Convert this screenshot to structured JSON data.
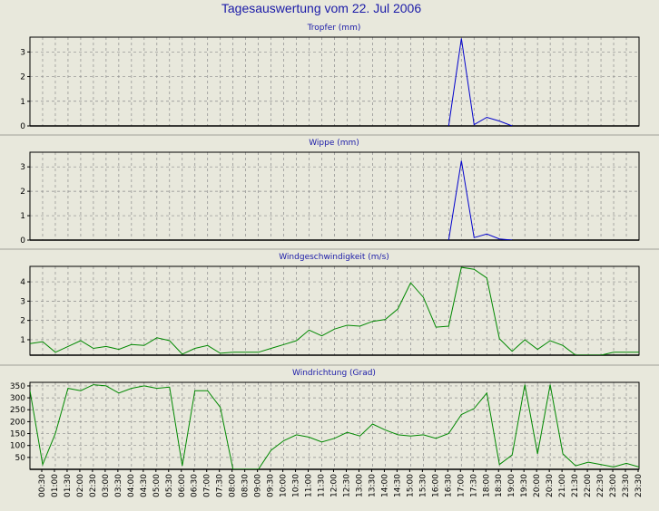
{
  "title": "Tagesauswertung vom 22. Jul 2006",
  "colors": {
    "background": "#e8e8dc",
    "title": "#1a1aa8",
    "rain": "#0000cc",
    "wind": "#008800",
    "grid": "#8c8c8c"
  },
  "chart_data": [
    {
      "type": "line",
      "title": "Tropfer (mm)",
      "color": "#0000cc",
      "ylim": [
        0,
        3.6
      ],
      "yticks": [
        0,
        1,
        2,
        3
      ],
      "x_count": 48,
      "points": [
        [
          33,
          0
        ],
        [
          34,
          3.55
        ],
        [
          35,
          0.05
        ],
        [
          36,
          0.35
        ],
        [
          37,
          0.2
        ],
        [
          38,
          0
        ]
      ],
      "grid": true
    },
    {
      "type": "line",
      "title": "Wippe (mm)",
      "color": "#0000cc",
      "ylim": [
        0,
        3.6
      ],
      "yticks": [
        0,
        1,
        2,
        3
      ],
      "x_count": 48,
      "points": [
        [
          33,
          0
        ],
        [
          34,
          3.25
        ],
        [
          35,
          0.1
        ],
        [
          36,
          0.25
        ],
        [
          37,
          0.05
        ],
        [
          38,
          0
        ]
      ],
      "grid": true
    },
    {
      "type": "line",
      "title": "Windgeschwindigkeit (m/s)",
      "color": "#008800",
      "ylim": [
        0.2,
        4.8
      ],
      "yticks": [
        1,
        2,
        3,
        4
      ],
      "x_count": 48,
      "points": [
        [
          0,
          0.8
        ],
        [
          1,
          0.9
        ],
        [
          2,
          0.35
        ],
        [
          3,
          0.65
        ],
        [
          4,
          0.95
        ],
        [
          5,
          0.55
        ],
        [
          6,
          0.65
        ],
        [
          7,
          0.5
        ],
        [
          8,
          0.75
        ],
        [
          9,
          0.7
        ],
        [
          10,
          1.1
        ],
        [
          11,
          0.95
        ],
        [
          12,
          0.25
        ],
        [
          13,
          0.55
        ],
        [
          14,
          0.7
        ],
        [
          15,
          0.3
        ],
        [
          16,
          0.35
        ],
        [
          17,
          0.35
        ],
        [
          18,
          0.35
        ],
        [
          19,
          0.55
        ],
        [
          20,
          0.75
        ],
        [
          21,
          0.95
        ],
        [
          22,
          1.5
        ],
        [
          23,
          1.2
        ],
        [
          24,
          1.55
        ],
        [
          25,
          1.75
        ],
        [
          26,
          1.7
        ],
        [
          27,
          1.95
        ],
        [
          28,
          2.05
        ],
        [
          29,
          2.6
        ],
        [
          30,
          3.95
        ],
        [
          31,
          3.2
        ],
        [
          32,
          1.65
        ],
        [
          33,
          1.7
        ],
        [
          34,
          4.75
        ],
        [
          35,
          4.65
        ],
        [
          36,
          4.2
        ],
        [
          37,
          1.05
        ],
        [
          38,
          0.4
        ],
        [
          39,
          1.0
        ],
        [
          40,
          0.5
        ],
        [
          41,
          0.95
        ],
        [
          42,
          0.7
        ],
        [
          43,
          0.2
        ],
        [
          44,
          0.2
        ],
        [
          45,
          0.2
        ],
        [
          46,
          0.35
        ],
        [
          47,
          0.35
        ],
        [
          48,
          0.35
        ]
      ],
      "grid": true
    },
    {
      "type": "line",
      "title": "Windrichtung (Grad)",
      "color": "#008800",
      "ylim": [
        0,
        365
      ],
      "yticks": [
        50,
        100,
        150,
        200,
        250,
        300,
        350
      ],
      "x_count": 48,
      "points": [
        [
          0,
          330
        ],
        [
          1,
          20
        ],
        [
          2,
          150
        ],
        [
          3,
          340
        ],
        [
          4,
          330
        ],
        [
          5,
          355
        ],
        [
          6,
          350
        ],
        [
          7,
          320
        ],
        [
          8,
          340
        ],
        [
          9,
          350
        ],
        [
          10,
          340
        ],
        [
          11,
          345
        ],
        [
          12,
          15
        ],
        [
          13,
          330
        ],
        [
          14,
          330
        ],
        [
          15,
          260
        ],
        [
          16,
          0
        ],
        [
          17,
          0
        ],
        [
          18,
          0
        ],
        [
          19,
          80
        ],
        [
          20,
          120
        ],
        [
          21,
          145
        ],
        [
          22,
          135
        ],
        [
          23,
          115
        ],
        [
          24,
          130
        ],
        [
          25,
          155
        ],
        [
          26,
          140
        ],
        [
          27,
          190
        ],
        [
          28,
          165
        ],
        [
          29,
          145
        ],
        [
          30,
          140
        ],
        [
          31,
          145
        ],
        [
          32,
          130
        ],
        [
          33,
          150
        ],
        [
          34,
          230
        ],
        [
          35,
          255
        ],
        [
          36,
          320
        ],
        [
          37,
          20
        ],
        [
          38,
          60
        ],
        [
          39,
          355
        ],
        [
          40,
          65
        ],
        [
          41,
          355
        ],
        [
          42,
          65
        ],
        [
          43,
          15
        ],
        [
          44,
          30
        ],
        [
          45,
          20
        ],
        [
          46,
          10
        ],
        [
          47,
          25
        ],
        [
          48,
          10
        ]
      ],
      "grid": true
    }
  ],
  "x_labels": [
    "00:30",
    "01:00",
    "01:30",
    "02:00",
    "02:30",
    "03:00",
    "03:30",
    "04:00",
    "04:30",
    "05:00",
    "05:30",
    "06:00",
    "06:30",
    "07:00",
    "07:30",
    "08:00",
    "08:30",
    "09:00",
    "09:30",
    "10:00",
    "10:30",
    "11:00",
    "11:30",
    "12:00",
    "12:30",
    "13:00",
    "13:30",
    "14:00",
    "14:30",
    "15:00",
    "15:30",
    "16:00",
    "16:30",
    "17:00",
    "17:30",
    "18:00",
    "18:30",
    "19:00",
    "19:30",
    "20:00",
    "20:30",
    "21:00",
    "21:30",
    "22:00",
    "22:30",
    "23:00",
    "23:30",
    "23:30"
  ]
}
